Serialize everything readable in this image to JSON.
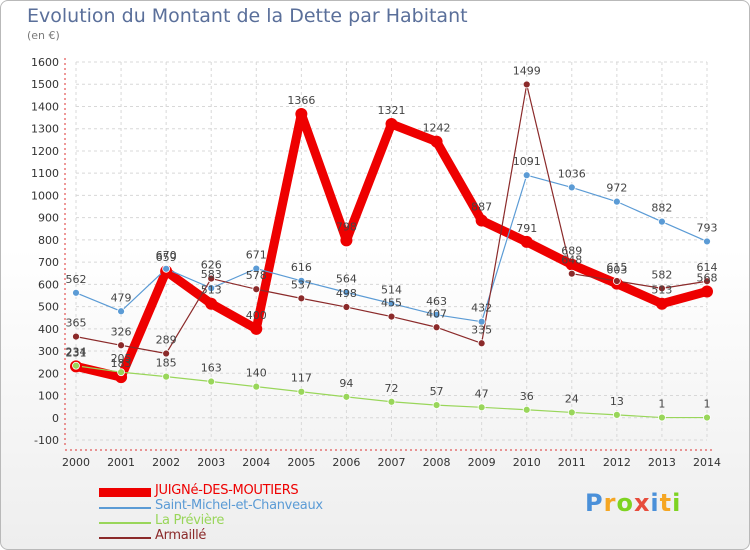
{
  "title": "Evolution du Montant de la Dette par Habitant",
  "unit": "(en €)",
  "logo": {
    "text": "Proxiti",
    "colors": [
      "#4a90d9",
      "#f5a623",
      "#7ed321",
      "#e74c3c",
      "#4a90d9",
      "#f5a623",
      "#7ed321"
    ]
  },
  "chart_data": {
    "type": "line",
    "x": [
      "2000",
      "2001",
      "2002",
      "2003",
      "2004",
      "2005",
      "2006",
      "2007",
      "2008",
      "2009",
      "2010",
      "2011",
      "2012",
      "2013",
      "2014"
    ],
    "ylim": [
      -100,
      1600
    ],
    "yticks": [
      -100,
      0,
      100,
      200,
      300,
      400,
      500,
      600,
      700,
      800,
      900,
      1000,
      1100,
      1200,
      1300,
      1400,
      1500,
      1600
    ],
    "grid": true,
    "legend_position": "bottom-left",
    "series": [
      {
        "name": "JUIGNé-DES-MOUTIERS",
        "color": "#ee0000",
        "values": [
          231,
          183,
          659,
          513,
          400,
          1366,
          798,
          1321,
          1242,
          887,
          791,
          689,
          603,
          513,
          568
        ]
      },
      {
        "name": "Saint-Michel-et-Chanveaux",
        "color": "#5b9bd5",
        "values": [
          562,
          479,
          670,
          583,
          671,
          616,
          564,
          514,
          463,
          432,
          1091,
          1036,
          972,
          882,
          793
        ]
      },
      {
        "name": "La Prévière",
        "color": "#99d65a",
        "values": [
          234,
          205,
          185,
          163,
          140,
          117,
          94,
          72,
          57,
          47,
          36,
          24,
          13,
          1,
          1
        ]
      },
      {
        "name": "Armaillé",
        "color": "#8b2a2a",
        "values": [
          365,
          326,
          289,
          626,
          578,
          537,
          498,
          455,
          407,
          335,
          1499,
          648,
          615,
          582,
          614
        ]
      }
    ]
  }
}
